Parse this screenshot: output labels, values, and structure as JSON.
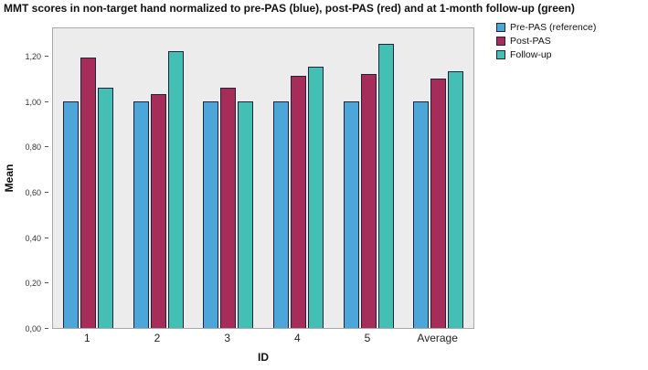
{
  "chart_data": {
    "type": "bar",
    "title": "MMT scores in non-target hand normalized to pre-PAS (blue), post-PAS (red) and at 1-month follow-up (green)",
    "xlabel": "ID",
    "ylabel": "Mean",
    "categories": [
      "1",
      "2",
      "3",
      "4",
      "5",
      "Average"
    ],
    "series": [
      {
        "name": "Pre-PAS (reference)",
        "color": "#4DA6DA",
        "values": [
          1.0,
          1.0,
          1.0,
          1.0,
          1.0,
          1.0
        ]
      },
      {
        "name": "Post-PAS",
        "color": "#A62C59",
        "values": [
          1.19,
          1.03,
          1.06,
          1.11,
          1.12,
          1.1
        ]
      },
      {
        "name": "Follow-up",
        "color": "#43BFB4",
        "values": [
          1.06,
          1.22,
          1.0,
          1.15,
          1.25,
          1.13
        ]
      }
    ],
    "ylim": [
      0,
      1.32
    ],
    "yticks": {
      "values": [
        0.0,
        0.2,
        0.4,
        0.6,
        0.8,
        1.0,
        1.2
      ],
      "labels": [
        "0,00",
        "0,20",
        "0,40",
        "0,60",
        "0,80",
        "1,00",
        "1,20"
      ]
    },
    "grid": false,
    "legend_position": "top-right",
    "bar_border_color": "#23233C",
    "plot_background": "#ECECEC"
  }
}
